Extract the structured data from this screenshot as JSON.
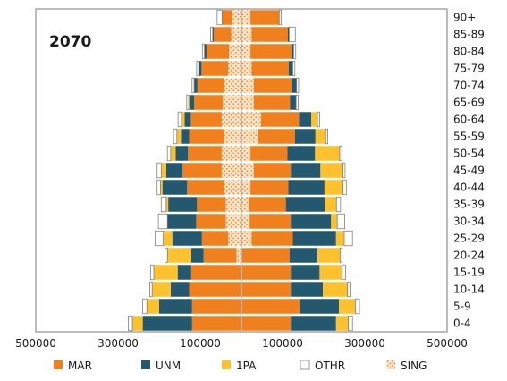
{
  "chart_data": {
    "type": "bar",
    "subtype": "population-pyramid",
    "title": "2070",
    "categories": [
      "0-4",
      "5-9",
      "10-14",
      "15-19",
      "20-24",
      "25-29",
      "30-34",
      "35-39",
      "40-44",
      "45-49",
      "50-54",
      "55-59",
      "60-64",
      "65-69",
      "70-74",
      "75-79",
      "80-84",
      "85-89",
      "90+"
    ],
    "x_ticks": [
      "500000",
      "300000",
      "100000",
      "100000",
      "300000",
      "500000"
    ],
    "xlim": [
      -500000,
      500000
    ],
    "stack_order": [
      "SING",
      "MAR",
      "UNM",
      "1PA",
      "OTHR"
    ],
    "series": [
      {
        "name": "MAR",
        "color": "#f07f1e",
        "left": [
          118000,
          118000,
          125000,
          120000,
          80000,
          64000,
          72000,
          70000,
          90000,
          95000,
          82000,
          85000,
          75000,
          70000,
          65000,
          65000,
          55000,
          42000,
          25000
        ],
        "right": [
          118000,
          140000,
          118000,
          118000,
          115000,
          100000,
          100000,
          90000,
          92000,
          90000,
          90000,
          90000,
          92000,
          88000,
          92000,
          90000,
          100000,
          88000,
          70000
        ]
      },
      {
        "name": "UNM",
        "color": "#23586e",
        "left": [
          120000,
          80000,
          45000,
          33000,
          30000,
          72000,
          70000,
          70000,
          60000,
          40000,
          30000,
          20000,
          15000,
          10000,
          8000,
          7000,
          5000,
          3000,
          0
        ],
        "right": [
          110000,
          95000,
          78000,
          70000,
          68000,
          105000,
          98000,
          95000,
          88000,
          72000,
          67000,
          50000,
          30000,
          15000,
          12000,
          10000,
          5000,
          3000,
          0
        ]
      },
      {
        "name": "1PA",
        "color": "#fcc12e",
        "left": [
          25000,
          30000,
          45000,
          58000,
          58000,
          22000,
          0,
          5000,
          5000,
          12000,
          12000,
          10000,
          8000,
          3000,
          0,
          0,
          0,
          0,
          0
        ],
        "right": [
          30000,
          40000,
          60000,
          55000,
          55000,
          20000,
          15000,
          28000,
          45000,
          55000,
          60000,
          25000,
          15000,
          0,
          0,
          0,
          0,
          0,
          0
        ]
      },
      {
        "name": "OTHR",
        "color": "#ffffff",
        "left": [
          10000,
          10000,
          6000,
          8000,
          6000,
          20000,
          22000,
          12000,
          8000,
          10000,
          8000,
          8000,
          8000,
          5000,
          5000,
          5000,
          5000,
          5000,
          12000
        ],
        "right": [
          10000,
          10000,
          6000,
          8000,
          5000,
          20000,
          18000,
          10000,
          8000,
          5000,
          5000,
          5000,
          5000,
          5000,
          5000,
          5000,
          5000,
          15000,
          5000
        ]
      },
      {
        "name": "SING",
        "color": "#fde3c8",
        "left": [
          2000,
          2000,
          2000,
          2000,
          12000,
          32000,
          38000,
          38000,
          42000,
          48000,
          48000,
          42000,
          48000,
          45000,
          42000,
          32000,
          30000,
          25000,
          22000
        ],
        "right": [
          2000,
          2000,
          2000,
          2000,
          2000,
          25000,
          20000,
          18000,
          22000,
          30000,
          22000,
          40000,
          48000,
          30000,
          30000,
          25000,
          22000,
          25000,
          22000
        ]
      }
    ],
    "legend_position": "bottom",
    "grid": false
  }
}
